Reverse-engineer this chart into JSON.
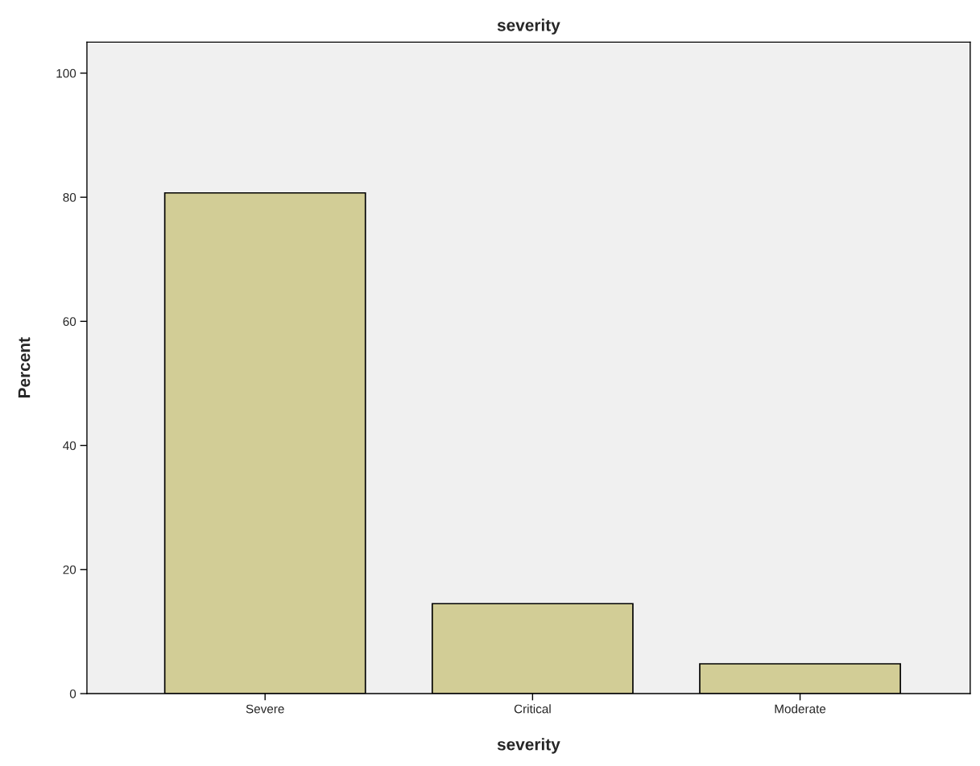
{
  "chart_data": {
    "type": "bar",
    "title": "severity",
    "xlabel": "severity",
    "ylabel": "Percent",
    "categories": [
      "Severe",
      "Critical",
      "Moderate"
    ],
    "values": [
      80.7,
      14.5,
      4.8
    ],
    "color": "#d2cd96",
    "ylim": [
      0,
      105
    ],
    "yticks": [
      0,
      20,
      40,
      60,
      80,
      100
    ],
    "grid": false
  }
}
